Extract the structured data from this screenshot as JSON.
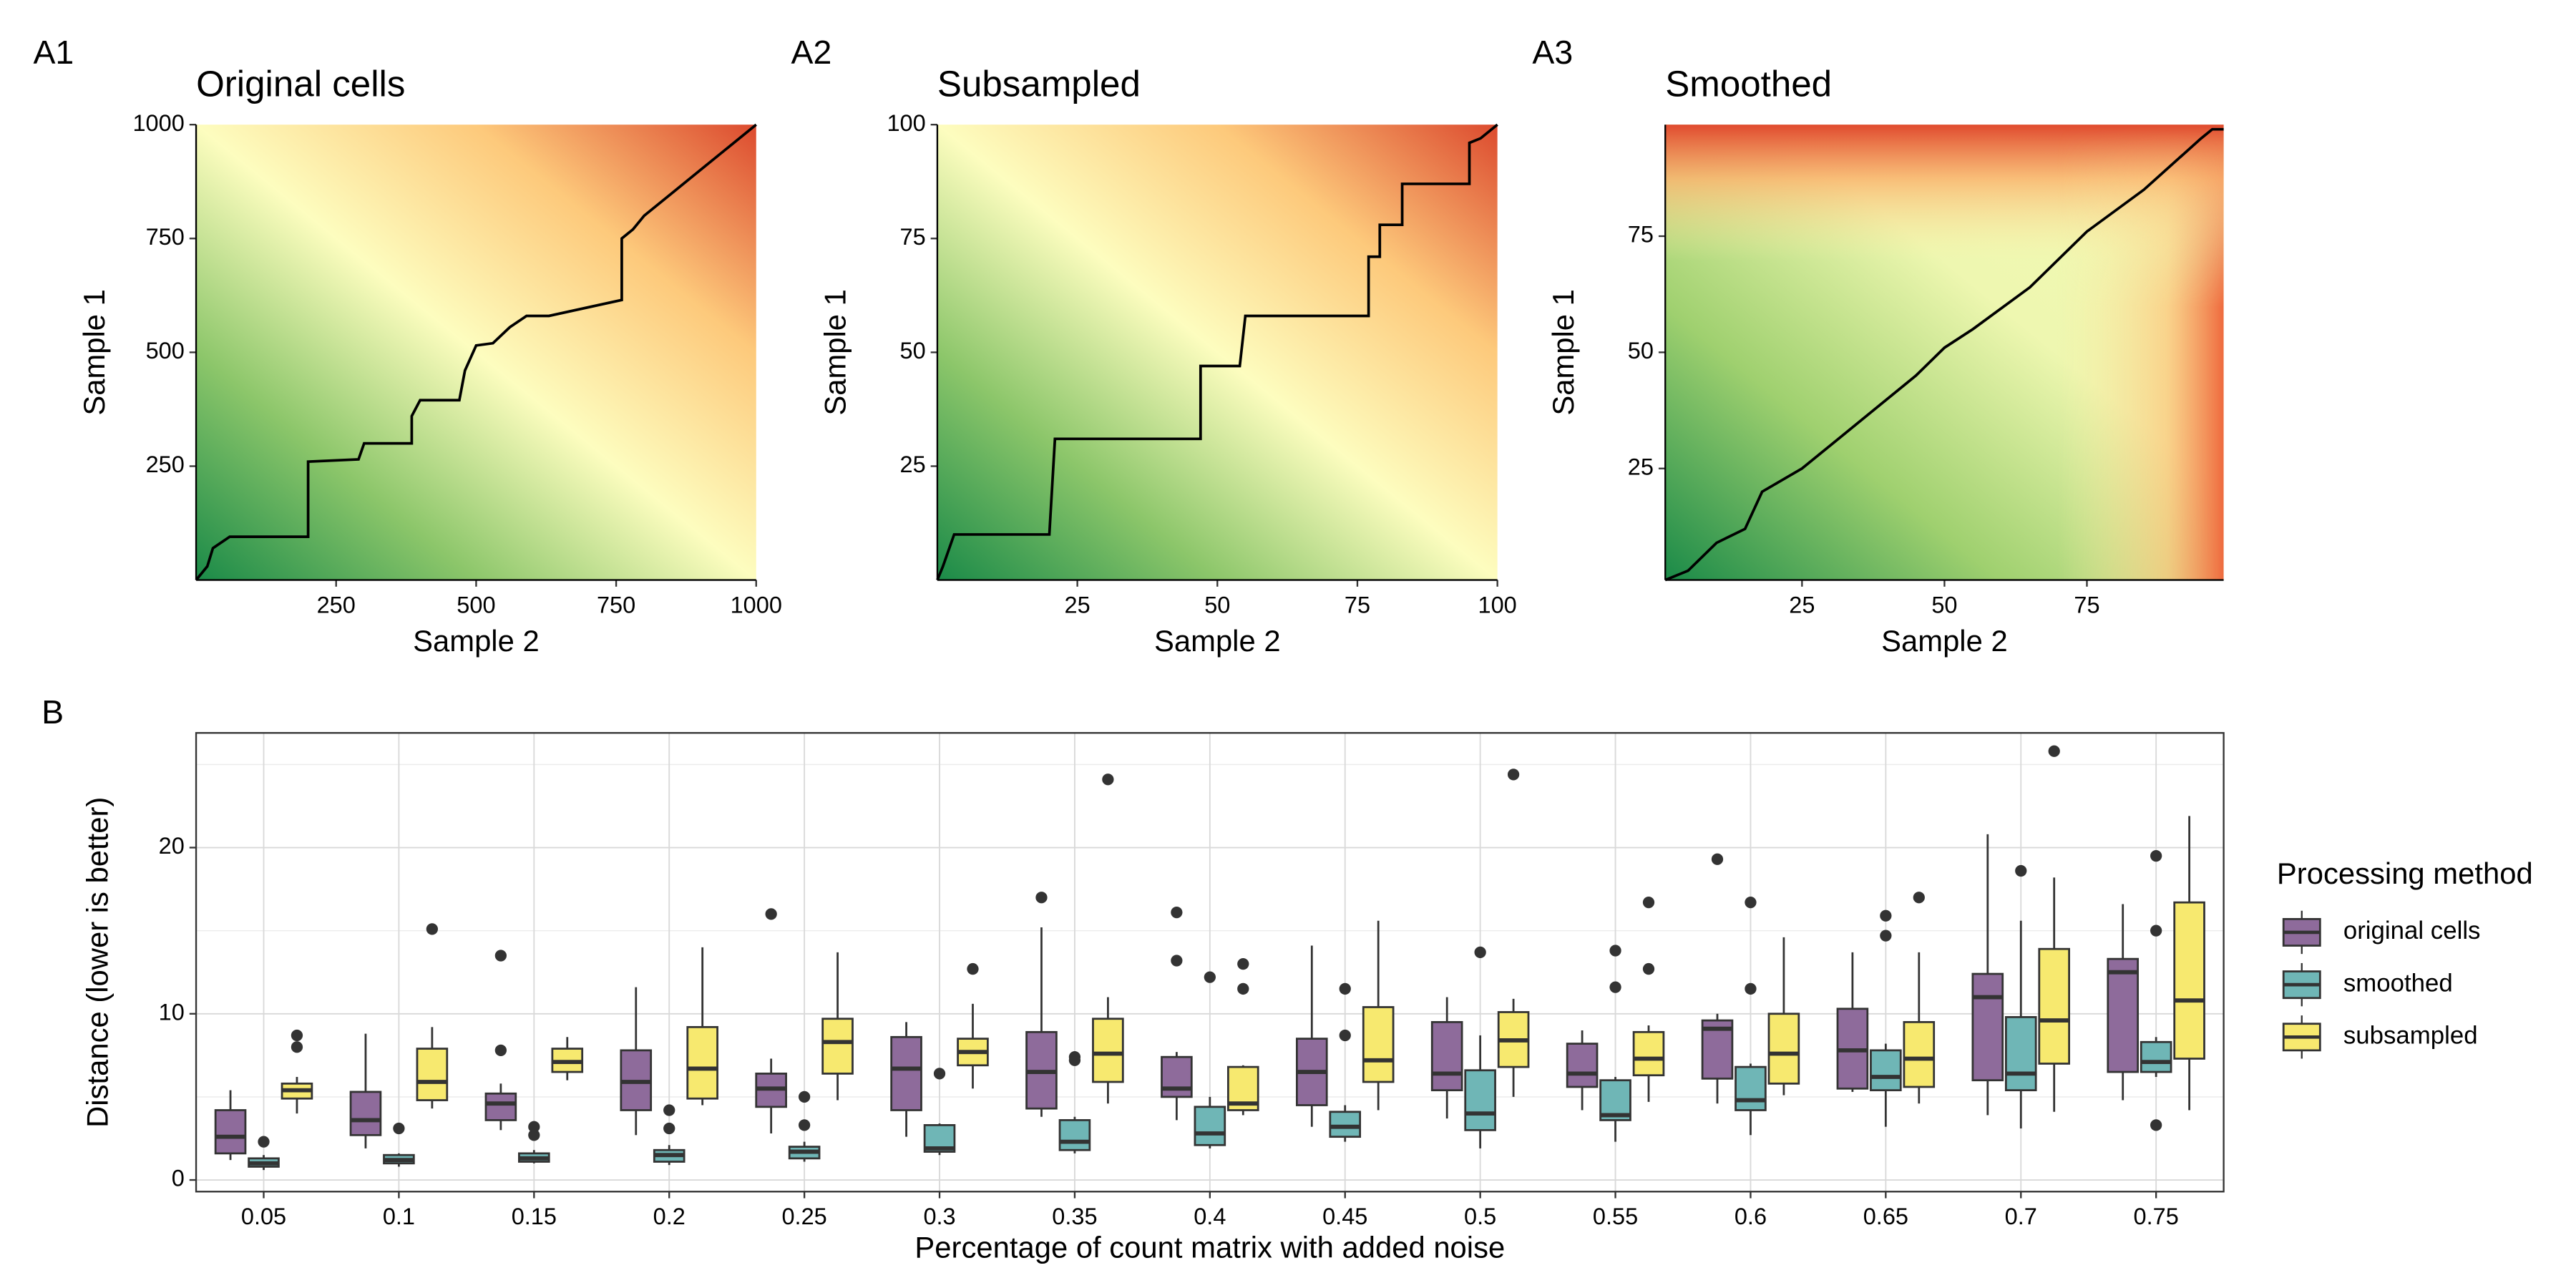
{
  "chart_data": [
    {
      "type": "heatmap",
      "panel_label": "A1",
      "title": "Original cells",
      "x_label": "Sample 2",
      "y_label": "Sample 1",
      "xlim": [
        0,
        1000
      ],
      "ylim": [
        0,
        1000
      ],
      "xticks": [
        250,
        500,
        750,
        1000
      ],
      "yticks": [
        250,
        500,
        750,
        1000
      ],
      "path_color": "#000000",
      "path_x": [
        0,
        10,
        20,
        30,
        60,
        200,
        200,
        290,
        300,
        385,
        385,
        400,
        470,
        480,
        500,
        530,
        560,
        590,
        630,
        760,
        760,
        780,
        800,
        850,
        900,
        950,
        1000
      ],
      "path_y": [
        0,
        15,
        30,
        70,
        95,
        95,
        260,
        265,
        300,
        300,
        360,
        395,
        395,
        460,
        515,
        520,
        555,
        580,
        580,
        615,
        750,
        770,
        800,
        850,
        900,
        950,
        1000
      ]
    },
    {
      "type": "heatmap",
      "panel_label": "A2",
      "title": "Subsampled",
      "x_label": "Sample 2",
      "y_label": "Sample 1",
      "xlim": [
        0,
        100
      ],
      "ylim": [
        0,
        100
      ],
      "xticks": [
        25,
        50,
        75,
        100
      ],
      "yticks": [
        25,
        50,
        75,
        100
      ],
      "path_color": "#000000",
      "path_x": [
        0,
        1,
        3,
        20,
        21,
        47,
        47,
        54,
        55,
        77,
        77,
        79,
        79,
        83,
        83,
        95,
        95,
        97,
        100
      ],
      "path_y": [
        0,
        3,
        10,
        10,
        31,
        31,
        47,
        47,
        58,
        58,
        71,
        71,
        78,
        78,
        87,
        87,
        96,
        97,
        100
      ]
    },
    {
      "type": "heatmap",
      "panel_label": "A3",
      "title": "Smoothed",
      "x_label": "Sample 2",
      "y_label": "Sample 1",
      "xlim": [
        1,
        99
      ],
      "ylim": [
        1,
        99
      ],
      "xticks": [
        25,
        50,
        75
      ],
      "yticks": [
        25,
        50,
        75
      ],
      "path_color": "#000000",
      "path_x": [
        1,
        5,
        10,
        15,
        18,
        25,
        30,
        37,
        45,
        50,
        55,
        65,
        75,
        85,
        95,
        97,
        99
      ],
      "path_y": [
        1,
        3,
        9,
        12,
        20,
        25,
        30,
        37,
        45,
        51,
        55,
        64,
        76,
        85,
        96,
        98,
        98
      ]
    },
    {
      "type": "box",
      "panel_label": "B",
      "x_label": "Percentage of count matrix with added noise",
      "y_label": "Distance (lower is better)",
      "legend_title": "Processing method",
      "categories": [
        "0.05",
        "0.1",
        "0.15",
        "0.2",
        "0.25",
        "0.3",
        "0.35",
        "0.4",
        "0.45",
        "0.5",
        "0.55",
        "0.6",
        "0.65",
        "0.7",
        "0.75"
      ],
      "ylim": [
        -0.7,
        26.9
      ],
      "yticks": [
        0,
        10,
        20
      ],
      "minor_yticks": [
        5,
        15,
        25
      ],
      "grid": true,
      "series": [
        {
          "name": "original cells",
          "color": "#8e6b9b",
          "min": [
            1.2,
            1.9,
            3.0,
            2.7,
            2.8,
            2.6,
            3.8,
            3.6,
            3.2,
            3.7,
            4.2,
            4.6,
            5.3,
            3.9,
            4.8
          ],
          "q1": [
            1.6,
            2.7,
            3.6,
            4.2,
            4.4,
            4.2,
            4.3,
            5.0,
            4.5,
            5.4,
            5.6,
            6.1,
            5.5,
            6.0,
            6.5
          ],
          "median": [
            2.6,
            3.6,
            4.6,
            5.9,
            5.5,
            6.7,
            6.5,
            5.5,
            6.5,
            6.4,
            6.4,
            9.1,
            7.8,
            11.0,
            12.5
          ],
          "q3": [
            4.2,
            5.3,
            5.2,
            7.8,
            6.4,
            8.6,
            8.9,
            7.4,
            8.5,
            9.5,
            8.2,
            9.6,
            10.3,
            12.4,
            13.3
          ],
          "max": [
            5.4,
            8.8,
            5.8,
            11.6,
            7.3,
            9.5,
            15.2,
            7.7,
            14.1,
            11.0,
            9.0,
            10.0,
            13.7,
            20.8,
            16.6
          ],
          "outliers": [
            [],
            [],
            [
              7.8,
              13.5
            ],
            [],
            [
              16.0
            ],
            [],
            [
              17.0
            ],
            [
              13.2,
              16.1
            ],
            [],
            [],
            [],
            [
              19.3
            ],
            [],
            [],
            []
          ]
        },
        {
          "name": "smoothed",
          "color": "#6fb6b6",
          "min": [
            0.6,
            0.8,
            1.0,
            0.9,
            1.1,
            1.5,
            1.6,
            1.9,
            2.3,
            1.9,
            2.3,
            2.7,
            3.2,
            3.1,
            6.2
          ],
          "q1": [
            0.8,
            1.0,
            1.1,
            1.1,
            1.3,
            1.7,
            1.8,
            2.1,
            2.6,
            3.0,
            3.6,
            4.2,
            5.4,
            5.4,
            6.5
          ],
          "median": [
            1.0,
            1.2,
            1.3,
            1.5,
            1.7,
            1.9,
            2.3,
            2.8,
            3.2,
            4.0,
            3.9,
            4.8,
            6.2,
            6.4,
            7.1
          ],
          "q3": [
            1.3,
            1.5,
            1.6,
            1.8,
            2.0,
            3.3,
            3.6,
            4.4,
            4.1,
            6.6,
            6.0,
            6.8,
            7.8,
            9.8,
            8.3
          ],
          "max": [
            1.5,
            1.6,
            1.8,
            2.1,
            2.3,
            3.4,
            3.8,
            5.0,
            4.5,
            8.7,
            6.2,
            7.0,
            8.2,
            15.6,
            8.6
          ],
          "outliers": [
            [
              2.3
            ],
            [
              3.1
            ],
            [
              2.7,
              3.2
            ],
            [
              3.1,
              4.2
            ],
            [
              3.3,
              5.0
            ],
            [
              6.4
            ],
            [
              7.2,
              7.4
            ],
            [
              12.2
            ],
            [
              8.7,
              11.5
            ],
            [
              13.7
            ],
            [
              11.6,
              13.8
            ],
            [
              11.5,
              16.7
            ],
            [
              14.7,
              15.9
            ],
            [
              18.6
            ],
            [
              3.3,
              15.0,
              19.5
            ]
          ]
        },
        {
          "name": "subsampled",
          "color": "#f7e96f",
          "min": [
            4.0,
            4.3,
            6.0,
            4.5,
            4.8,
            5.5,
            4.6,
            3.9,
            4.2,
            5.0,
            4.7,
            5.1,
            4.6,
            4.1,
            4.2
          ],
          "q1": [
            4.9,
            4.8,
            6.5,
            4.9,
            6.4,
            6.9,
            5.9,
            4.2,
            5.9,
            6.8,
            6.3,
            5.8,
            5.6,
            7.0,
            7.3
          ],
          "median": [
            5.4,
            5.9,
            7.1,
            6.7,
            8.3,
            7.7,
            7.6,
            4.6,
            7.2,
            8.4,
            7.3,
            7.6,
            7.3,
            9.6,
            10.8
          ],
          "q3": [
            5.8,
            7.9,
            7.9,
            9.2,
            9.7,
            8.5,
            9.7,
            6.8,
            10.4,
            10.1,
            8.9,
            10.0,
            9.5,
            13.9,
            16.7
          ],
          "max": [
            6.2,
            9.2,
            8.6,
            14.0,
            13.7,
            10.6,
            11.0,
            6.9,
            15.6,
            10.9,
            9.3,
            14.6,
            13.7,
            18.2,
            21.9
          ],
          "outliers": [
            [
              8.0,
              8.7
            ],
            [
              15.1
            ],
            [],
            [],
            [],
            [
              12.7
            ],
            [
              24.1
            ],
            [
              11.5,
              13.0
            ],
            [],
            [
              24.4
            ],
            [
              12.7,
              16.7
            ],
            [],
            [
              17.0
            ],
            [
              25.8
            ],
            []
          ]
        }
      ]
    }
  ]
}
